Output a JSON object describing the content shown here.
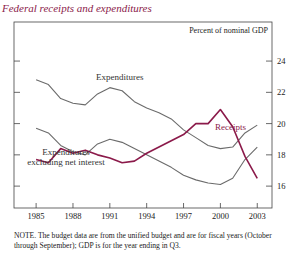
{
  "chart_data": {
    "type": "line",
    "title": "Federal receipts and expenditures",
    "y_label": "Percent of nominal GDP",
    "note": "NOTE. The budget data are from the unified budget and are for fiscal years (October through September); GDP is for the year ending in Q3.",
    "x": [
      1985,
      1986,
      1987,
      1988,
      1989,
      1990,
      1991,
      1992,
      1993,
      1994,
      1995,
      1996,
      1997,
      1998,
      1999,
      2000,
      2001,
      2002,
      2003
    ],
    "series": [
      {
        "name": "Expenditures",
        "color": "#6b6b6b",
        "values": [
          22.8,
          22.5,
          21.6,
          21.3,
          21.2,
          21.9,
          22.3,
          22.1,
          21.4,
          21.0,
          20.7,
          20.3,
          19.6,
          19.1,
          18.6,
          18.4,
          18.5,
          19.4,
          19.9
        ]
      },
      {
        "name": "Expenditures excluding net interest",
        "color": "#6b6b6b",
        "values": [
          19.7,
          19.4,
          18.6,
          18.2,
          18.0,
          18.7,
          19.0,
          18.8,
          18.4,
          18.0,
          17.6,
          17.2,
          16.7,
          16.4,
          16.2,
          16.1,
          16.5,
          17.7,
          18.5
        ]
      },
      {
        "name": "Receipts",
        "color": "#8b1a4a",
        "values": [
          17.7,
          17.5,
          18.4,
          18.1,
          18.3,
          18.0,
          17.8,
          17.5,
          17.6,
          18.1,
          18.5,
          18.9,
          19.3,
          20.0,
          20.0,
          20.9,
          19.8,
          17.9,
          16.5
        ]
      }
    ],
    "xlim": [
      1983.2,
      2004.2
    ],
    "xticks": [
      1985,
      1988,
      1991,
      1994,
      1997,
      2000,
      2003
    ],
    "ylim": [
      14.6,
      26.5
    ],
    "yticks": [
      16,
      18,
      20,
      22,
      24
    ]
  }
}
